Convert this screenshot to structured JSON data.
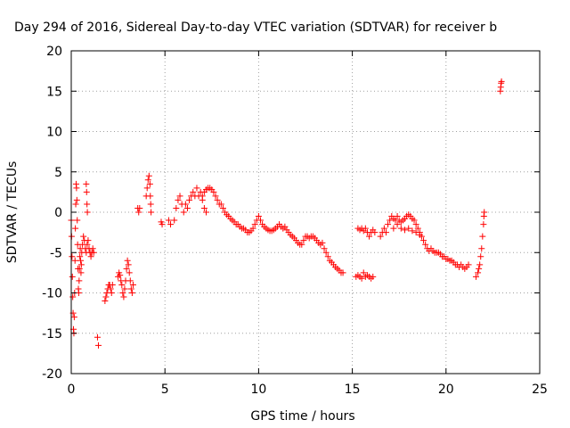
{
  "chart_data": {
    "type": "scatter",
    "title": "Day 294 of 2016, Sidereal Day-to-day VTEC variation (SDTVAR) for receiver b",
    "xlabel": "GPS time / hours",
    "ylabel": "SDTVAR / TECUs",
    "xlim": [
      0,
      25
    ],
    "ylim": [
      -20,
      20
    ],
    "xticks": [
      0,
      5,
      10,
      15,
      20,
      25
    ],
    "yticks": [
      -20,
      -15,
      -10,
      -5,
      0,
      5,
      10,
      15,
      20
    ],
    "xtick_labels": [
      "0",
      "5",
      "10",
      "15",
      "20",
      "25"
    ],
    "ytick_labels": [
      "-20",
      "-15",
      "-10",
      "-5",
      "0",
      "5",
      "10",
      "15",
      "20"
    ],
    "grid": true,
    "marker": "+",
    "color": "#ff0000",
    "series": [
      {
        "name": "SDTVAR",
        "points": [
          [
            0.0,
            -1.0
          ],
          [
            0.02,
            -3.0
          ],
          [
            0.04,
            -5.5
          ],
          [
            0.06,
            -8.0
          ],
          [
            0.08,
            -10.5
          ],
          [
            0.1,
            -12.5
          ],
          [
            0.12,
            -14.5
          ],
          [
            0.14,
            -15.0
          ],
          [
            0.16,
            -13.0
          ],
          [
            0.18,
            -10.0
          ],
          [
            0.2,
            -6.0
          ],
          [
            0.22,
            -2.0
          ],
          [
            0.24,
            1.0
          ],
          [
            0.26,
            3.5
          ],
          [
            0.28,
            3.0
          ],
          [
            0.3,
            1.5
          ],
          [
            0.32,
            -1.0
          ],
          [
            0.34,
            -4.0
          ],
          [
            0.36,
            -7.0
          ],
          [
            0.38,
            -9.5
          ],
          [
            0.4,
            -10.0
          ],
          [
            0.42,
            -8.5
          ],
          [
            0.44,
            -7.0
          ],
          [
            0.46,
            -5.5
          ],
          [
            0.48,
            -4.5
          ],
          [
            0.5,
            -6.0
          ],
          [
            0.52,
            -7.5
          ],
          [
            0.54,
            -6.5
          ],
          [
            0.56,
            -5.0
          ],
          [
            0.6,
            -4.0
          ],
          [
            0.65,
            -3.0
          ],
          [
            0.7,
            -3.5
          ],
          [
            0.75,
            -4.5
          ],
          [
            0.8,
            -5.0
          ],
          [
            0.85,
            -4.0
          ],
          [
            0.9,
            -3.5
          ],
          [
            0.95,
            -4.5
          ],
          [
            1.0,
            -5.0
          ],
          [
            1.05,
            -5.5
          ],
          [
            1.1,
            -5.0
          ],
          [
            1.15,
            -4.5
          ],
          [
            1.2,
            -5.0
          ],
          [
            0.8,
            3.5
          ],
          [
            0.82,
            2.5
          ],
          [
            0.84,
            1.0
          ],
          [
            0.86,
            0.0
          ],
          [
            1.4,
            -15.5
          ],
          [
            1.45,
            -16.5
          ],
          [
            1.8,
            -11.0
          ],
          [
            1.85,
            -10.5
          ],
          [
            1.9,
            -10.0
          ],
          [
            1.95,
            -9.5
          ],
          [
            2.0,
            -9.0
          ],
          [
            2.05,
            -9.0
          ],
          [
            2.1,
            -9.5
          ],
          [
            2.15,
            -10.0
          ],
          [
            2.2,
            -9.0
          ],
          [
            2.5,
            -8.0
          ],
          [
            2.55,
            -7.5
          ],
          [
            2.6,
            -7.8
          ],
          [
            2.65,
            -8.5
          ],
          [
            2.7,
            -9.0
          ],
          [
            2.75,
            -10.0
          ],
          [
            2.8,
            -10.5
          ],
          [
            2.85,
            -9.5
          ],
          [
            2.9,
            -8.5
          ],
          [
            2.95,
            -7.0
          ],
          [
            3.0,
            -6.0
          ],
          [
            3.05,
            -6.5
          ],
          [
            3.1,
            -7.5
          ],
          [
            3.15,
            -8.5
          ],
          [
            3.2,
            -9.5
          ],
          [
            3.25,
            -10.0
          ],
          [
            3.3,
            -9.0
          ],
          [
            3.55,
            0.5
          ],
          [
            3.6,
            0.0
          ],
          [
            3.65,
            0.5
          ],
          [
            4.0,
            2.0
          ],
          [
            4.05,
            3.0
          ],
          [
            4.1,
            4.0
          ],
          [
            4.15,
            4.5
          ],
          [
            4.2,
            3.5
          ],
          [
            4.22,
            2.0
          ],
          [
            4.24,
            1.0
          ],
          [
            4.26,
            0.0
          ],
          [
            4.8,
            -1.2
          ],
          [
            4.85,
            -1.5
          ],
          [
            5.2,
            -1.0
          ],
          [
            5.3,
            -1.5
          ],
          [
            5.5,
            -1.0
          ],
          [
            5.6,
            0.5
          ],
          [
            5.7,
            1.5
          ],
          [
            5.8,
            2.0
          ],
          [
            5.9,
            1.0
          ],
          [
            6.0,
            0.0
          ],
          [
            6.1,
            1.0
          ],
          [
            6.2,
            0.5
          ],
          [
            6.3,
            1.5
          ],
          [
            6.4,
            2.0
          ],
          [
            6.5,
            2.5
          ],
          [
            6.6,
            2.0
          ],
          [
            6.7,
            3.0
          ],
          [
            6.8,
            2.0
          ],
          [
            6.9,
            2.5
          ],
          [
            7.0,
            1.5
          ],
          [
            7.1,
            0.5
          ],
          [
            7.2,
            0.0
          ],
          [
            7.0,
            2.0
          ],
          [
            7.1,
            2.5
          ],
          [
            7.2,
            2.8
          ],
          [
            7.3,
            3.0
          ],
          [
            7.4,
            3.0
          ],
          [
            7.5,
            2.8
          ],
          [
            7.6,
            2.5
          ],
          [
            7.7,
            2.0
          ],
          [
            7.8,
            1.5
          ],
          [
            7.9,
            1.0
          ],
          [
            8.0,
            1.0
          ],
          [
            8.1,
            0.5
          ],
          [
            8.2,
            0.0
          ],
          [
            8.3,
            -0.3
          ],
          [
            8.4,
            -0.5
          ],
          [
            8.5,
            -0.8
          ],
          [
            8.6,
            -1.0
          ],
          [
            8.7,
            -1.2
          ],
          [
            8.8,
            -1.5
          ],
          [
            8.9,
            -1.5
          ],
          [
            9.0,
            -1.8
          ],
          [
            9.1,
            -2.0
          ],
          [
            9.2,
            -2.0
          ],
          [
            9.3,
            -2.2
          ],
          [
            9.4,
            -2.5
          ],
          [
            9.5,
            -2.5
          ],
          [
            9.6,
            -2.3
          ],
          [
            9.7,
            -2.0
          ],
          [
            9.8,
            -1.5
          ],
          [
            9.9,
            -1.0
          ],
          [
            10.0,
            -0.5
          ],
          [
            10.1,
            -1.0
          ],
          [
            10.2,
            -1.5
          ],
          [
            10.3,
            -1.8
          ],
          [
            10.4,
            -2.0
          ],
          [
            10.5,
            -2.2
          ],
          [
            10.6,
            -2.3
          ],
          [
            10.7,
            -2.3
          ],
          [
            10.8,
            -2.2
          ],
          [
            10.9,
            -2.0
          ],
          [
            11.0,
            -1.8
          ],
          [
            11.1,
            -1.5
          ],
          [
            11.2,
            -1.8
          ],
          [
            11.3,
            -2.0
          ],
          [
            11.4,
            -1.8
          ],
          [
            11.5,
            -2.2
          ],
          [
            11.6,
            -2.5
          ],
          [
            11.7,
            -2.8
          ],
          [
            11.8,
            -3.0
          ],
          [
            11.9,
            -3.2
          ],
          [
            12.0,
            -3.5
          ],
          [
            12.1,
            -3.8
          ],
          [
            12.2,
            -4.0
          ],
          [
            12.3,
            -4.0
          ],
          [
            12.4,
            -3.5
          ],
          [
            12.5,
            -3.0
          ],
          [
            12.6,
            -3.0
          ],
          [
            12.7,
            -3.2
          ],
          [
            12.8,
            -3.0
          ],
          [
            12.9,
            -3.0
          ],
          [
            13.0,
            -3.2
          ],
          [
            13.1,
            -3.5
          ],
          [
            13.2,
            -3.8
          ],
          [
            13.3,
            -4.0
          ],
          [
            13.4,
            -3.8
          ],
          [
            13.5,
            -4.5
          ],
          [
            13.6,
            -5.0
          ],
          [
            13.7,
            -5.5
          ],
          [
            13.8,
            -6.0
          ],
          [
            13.9,
            -6.2
          ],
          [
            14.0,
            -6.5
          ],
          [
            14.1,
            -6.8
          ],
          [
            14.2,
            -7.0
          ],
          [
            14.3,
            -7.2
          ],
          [
            14.4,
            -7.5
          ],
          [
            14.5,
            -7.5
          ],
          [
            15.2,
            -8.0
          ],
          [
            15.3,
            -7.8
          ],
          [
            15.4,
            -8.0
          ],
          [
            15.5,
            -8.2
          ],
          [
            15.6,
            -7.5
          ],
          [
            15.7,
            -8.0
          ],
          [
            15.8,
            -7.8
          ],
          [
            15.9,
            -8.0
          ],
          [
            16.0,
            -8.2
          ],
          [
            16.1,
            -8.0
          ],
          [
            15.3,
            -2.0
          ],
          [
            15.4,
            -2.2
          ],
          [
            15.5,
            -2.0
          ],
          [
            15.6,
            -2.3
          ],
          [
            15.7,
            -2.0
          ],
          [
            15.8,
            -2.5
          ],
          [
            15.9,
            -3.0
          ],
          [
            16.0,
            -2.5
          ],
          [
            16.1,
            -2.2
          ],
          [
            16.2,
            -2.5
          ],
          [
            16.5,
            -3.0
          ],
          [
            16.6,
            -2.5
          ],
          [
            16.7,
            -2.0
          ],
          [
            16.8,
            -2.5
          ],
          [
            16.9,
            -1.5
          ],
          [
            17.0,
            -1.0
          ],
          [
            17.1,
            -0.5
          ],
          [
            17.2,
            -0.8
          ],
          [
            17.3,
            -1.0
          ],
          [
            17.4,
            -0.5
          ],
          [
            17.5,
            -1.0
          ],
          [
            17.6,
            -1.2
          ],
          [
            17.7,
            -1.0
          ],
          [
            17.8,
            -0.8
          ],
          [
            17.9,
            -0.5
          ],
          [
            18.0,
            -0.3
          ],
          [
            18.1,
            -0.5
          ],
          [
            18.2,
            -0.8
          ],
          [
            18.3,
            -1.0
          ],
          [
            18.4,
            -1.5
          ],
          [
            18.5,
            -2.0
          ],
          [
            18.6,
            -2.5
          ],
          [
            18.7,
            -3.0
          ],
          [
            18.8,
            -3.5
          ],
          [
            18.9,
            -4.0
          ],
          [
            19.0,
            -4.5
          ],
          [
            19.1,
            -4.8
          ],
          [
            19.2,
            -4.5
          ],
          [
            19.3,
            -4.8
          ],
          [
            19.4,
            -5.0
          ],
          [
            19.5,
            -5.0
          ],
          [
            19.6,
            -5.0
          ],
          [
            19.7,
            -5.2
          ],
          [
            19.8,
            -5.5
          ],
          [
            19.9,
            -5.5
          ],
          [
            20.0,
            -5.8
          ],
          [
            20.1,
            -5.8
          ],
          [
            20.2,
            -6.0
          ],
          [
            20.3,
            -6.0
          ],
          [
            20.4,
            -6.2
          ],
          [
            20.5,
            -6.5
          ],
          [
            20.6,
            -6.5
          ],
          [
            20.7,
            -6.8
          ],
          [
            20.8,
            -6.5
          ],
          [
            20.9,
            -6.8
          ],
          [
            21.0,
            -7.0
          ],
          [
            21.1,
            -6.8
          ],
          [
            21.2,
            -6.5
          ],
          [
            17.2,
            -2.0
          ],
          [
            17.4,
            -1.5
          ],
          [
            17.6,
            -2.0
          ],
          [
            17.8,
            -2.2
          ],
          [
            18.0,
            -2.0
          ],
          [
            18.2,
            -2.3
          ],
          [
            18.4,
            -2.5
          ],
          [
            18.6,
            -2.8
          ],
          [
            21.6,
            -8.0
          ],
          [
            21.7,
            -7.5
          ],
          [
            21.75,
            -7.0
          ],
          [
            21.8,
            -6.5
          ],
          [
            21.85,
            -5.5
          ],
          [
            21.9,
            -4.5
          ],
          [
            21.95,
            -3.0
          ],
          [
            22.0,
            -1.5
          ],
          [
            22.02,
            -0.5
          ],
          [
            22.04,
            0.0
          ],
          [
            22.9,
            15.0
          ],
          [
            22.92,
            15.5
          ],
          [
            22.94,
            16.0
          ],
          [
            22.96,
            16.2
          ]
        ]
      }
    ]
  }
}
